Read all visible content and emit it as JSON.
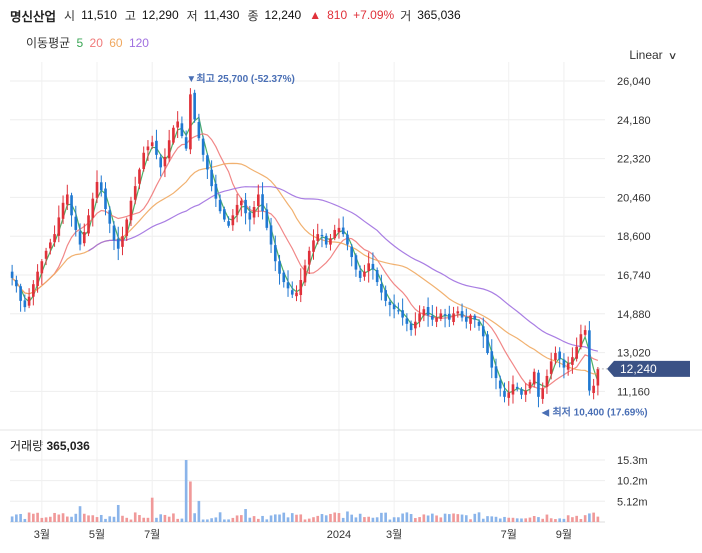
{
  "header": {
    "name": "명신산업",
    "open_label": "시",
    "open": "11,510",
    "high_label": "고",
    "high": "12,290",
    "low_label": "저",
    "low": "11,430",
    "close_label": "종",
    "close": "12,240",
    "change_arrow": "▲",
    "change": "810",
    "change_pct": "+7.09%",
    "volume_label": "거",
    "volume": "365,036"
  },
  "ma_legend": {
    "title": "이동평균",
    "periods": [
      "5",
      "20",
      "60",
      "120"
    ],
    "colors": [
      "#3aa655",
      "#f07a7a",
      "#f0a860",
      "#a070e0"
    ]
  },
  "scale_selector": {
    "label": "Linear"
  },
  "annotations": {
    "max_marker": "▼",
    "max_text": "최고 25,700 (-52.37%)",
    "min_marker": "◀",
    "min_text": "최저 10,400 (17.69%)"
  },
  "current_price_tag": "12,240",
  "volume_panel": {
    "title": "거래량",
    "value": "365,036"
  },
  "colors": {
    "up": "#e0313a",
    "down": "#1f78d1",
    "tag_bg": "#3b5286",
    "vol_up": "#f09999",
    "vol_down": "#8ab4ea"
  },
  "chart_data": {
    "type": "candlestick",
    "price_axis_ticks": [
      "26,040",
      "24,180",
      "22,320",
      "20,460",
      "18,600",
      "16,740",
      "14,880",
      "13,020",
      "11,160"
    ],
    "price_axis_values": [
      26040,
      24180,
      22320,
      20460,
      18600,
      16740,
      14880,
      13020,
      11160
    ],
    "volume_axis_ticks": [
      "15.3m",
      "10.2m",
      "5.12m"
    ],
    "volume_axis_values": [
      15300000,
      10200000,
      5120000
    ],
    "x_axis_labels": [
      "3월",
      "5월",
      "7월",
      "2024",
      "3월",
      "7월",
      "9월"
    ],
    "x_axis_positions": [
      7,
      20,
      33,
      77,
      90,
      117,
      130
    ],
    "max": {
      "index": 42,
      "value": 25700
    },
    "min": {
      "index": 124,
      "value": 10400
    },
    "close_sample": [
      16600,
      16200,
      15500,
      15200,
      15700,
      16300,
      16900,
      17400,
      17900,
      18300,
      18700,
      19500,
      20200,
      20600,
      19600,
      18900,
      18200,
      18800,
      19600,
      20400,
      21200,
      20800,
      19900,
      19200,
      18400,
      18000,
      18600,
      19400,
      20300,
      21000,
      21800,
      22600,
      22900,
      23100,
      22500,
      21900,
      22400,
      23200,
      23800,
      24100,
      23400,
      22800,
      25400,
      24200,
      23300,
      22500,
      21800,
      21000,
      20400,
      19800,
      19400,
      19100,
      19600,
      20100,
      20300,
      19700,
      19400,
      20000,
      20600,
      19800,
      19000,
      18200,
      17400,
      16800,
      16400,
      16100,
      15800,
      15900,
      16500,
      17200,
      17900,
      18400,
      18700,
      18600,
      18200,
      18500,
      18900,
      19000,
      18700,
      18200,
      17600,
      17000,
      16600,
      16900,
      17300,
      17000,
      16400,
      15900,
      15500,
      15300,
      15100,
      15000,
      14700,
      14400,
      14100,
      14500,
      14900,
      15100,
      14800,
      14600,
      14700,
      14900,
      14800,
      14600,
      14900,
      15000,
      14700,
      14500,
      14800,
      14600,
      14300,
      13800,
      13000,
      12300,
      11800,
      11300,
      10900,
      11100,
      11500,
      11300,
      11000,
      11200,
      11600,
      12100,
      10900,
      11300,
      11900,
      12600,
      13000,
      12700,
      12300,
      12500,
      12800,
      13300,
      13900,
      14100,
      11200,
      11430,
      12240
    ]
  }
}
